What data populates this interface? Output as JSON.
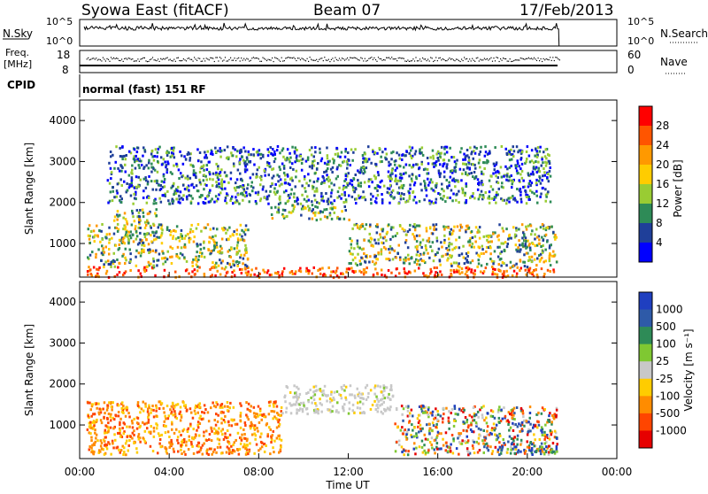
{
  "header": {
    "station": "Syowa East (fitACF)",
    "beam": "Beam 07",
    "date": "17/Feb/2013"
  },
  "panels": {
    "nsky": {
      "label": "N.Sky",
      "left_ticks": [
        "10^5",
        "10^0"
      ],
      "right_ticks": [
        "10^5",
        "10^0"
      ],
      "right_label": "N.Search"
    },
    "freq": {
      "label_top": "Freq.",
      "label_bottom": "[MHz]",
      "left_ticks": [
        "18",
        "8"
      ],
      "right_ticks": [
        "60",
        "0"
      ],
      "right_label": "Nave"
    },
    "cpid": {
      "label": "CPID",
      "text": "normal (fast) 151 RF"
    },
    "power": {
      "ylabel": "Slant Range [km]",
      "yticks": [
        "4000",
        "3000",
        "2000",
        "1000"
      ],
      "colorbar_label": "Power [dB]",
      "colorbar_ticks": [
        "28",
        "24",
        "20",
        "16",
        "12",
        "8",
        "4"
      ],
      "colors": [
        "#ff0000",
        "#ff5500",
        "#ff9900",
        "#ffcc00",
        "#99cc33",
        "#2e8b57",
        "#1f3f99",
        "#0000ff"
      ]
    },
    "velocity": {
      "ylabel": "Slant Range [km]",
      "yticks": [
        "4000",
        "3000",
        "2000",
        "1000"
      ],
      "colorbar_label": "Velocity [m s⁻¹]",
      "colorbar_ticks": [
        "1000",
        "500",
        "100",
        "25",
        "-25",
        "-100",
        "-500",
        "-1000"
      ],
      "colors": [
        "#1f3fc0",
        "#2e5aa8",
        "#2e8b57",
        "#7fc832",
        "#c8c8c8",
        "#ffcc00",
        "#ff8c00",
        "#ff4500",
        "#e60000"
      ]
    }
  },
  "xaxis": {
    "label": "Time UT",
    "ticks": [
      "00:00",
      "04:00",
      "08:00",
      "12:00",
      "16:00",
      "20:00",
      "00:00"
    ]
  },
  "chart_data": [
    {
      "type": "heatmap",
      "title": "Power",
      "xlabel": "Time UT",
      "ylabel": "Slant Range [km]",
      "xlim": [
        "00:00",
        "24:00"
      ],
      "ylim": [
        180,
        4500
      ],
      "colorbar": "Power [dB]",
      "colorbar_range": [
        0,
        30
      ],
      "data_end_time": "21:25",
      "echo_regions": [
        {
          "t_start": 0.3,
          "t_end": 21.3,
          "range_min": 200,
          "range_max": 450,
          "level": "high"
        },
        {
          "t_start": 0.3,
          "t_end": 7.5,
          "range_min": 450,
          "range_max": 1500,
          "level": "medium"
        },
        {
          "t_start": 1.5,
          "t_end": 3.5,
          "range_min": 1500,
          "range_max": 1900,
          "level": "medium"
        },
        {
          "t_start": 8.5,
          "t_end": 12.0,
          "range_min": 1600,
          "range_max": 2000,
          "level": "medium"
        },
        {
          "t_start": 12.0,
          "t_end": 16.0,
          "range_min": 500,
          "range_max": 1500,
          "level": "medium"
        },
        {
          "t_start": 16.0,
          "t_end": 21.3,
          "range_min": 450,
          "range_max": 1500,
          "level": "medium"
        },
        {
          "t_start": 1.2,
          "t_end": 21.0,
          "range_min": 2000,
          "range_max": 3400,
          "level": "low"
        }
      ]
    },
    {
      "type": "heatmap",
      "title": "Velocity",
      "xlabel": "Time UT",
      "ylabel": "Slant Range [km]",
      "xlim": [
        "00:00",
        "24:00"
      ],
      "ylim": [
        180,
        4500
      ],
      "colorbar": "Velocity [m s⁻¹]",
      "colorbar_range": [
        -1000,
        1000
      ],
      "data_end_time": "21:25",
      "echo_regions": [
        {
          "t_start": 0.3,
          "t_end": 9.0,
          "range_min": 300,
          "range_max": 1600,
          "velocity": "negative"
        },
        {
          "t_start": 9.0,
          "t_end": 14.0,
          "range_min": 1300,
          "range_max": 2000,
          "velocity": "near-zero"
        },
        {
          "t_start": 14.0,
          "t_end": 21.3,
          "range_min": 300,
          "range_max": 1500,
          "velocity": "mixed"
        },
        {
          "t_start": 18.0,
          "t_end": 21.3,
          "range_min": 300,
          "range_max": 500,
          "velocity": "positive"
        }
      ]
    }
  ]
}
